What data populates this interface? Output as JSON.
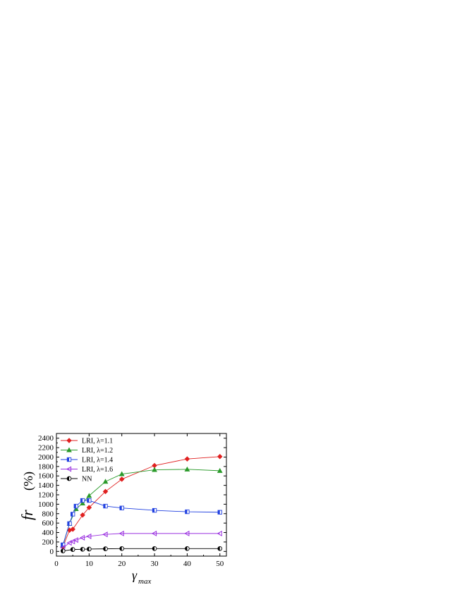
{
  "chart_data": {
    "type": "line",
    "xlabel": "γ",
    "xlabel_subscript": "max",
    "ylabel": "fr",
    "ylabel_unit": "(%)",
    "xlim": [
      0,
      52
    ],
    "ylim": [
      -100,
      2500
    ],
    "xticks": [
      0,
      10,
      20,
      30,
      40,
      50
    ],
    "yticks": [
      0,
      200,
      400,
      600,
      800,
      1000,
      1200,
      1400,
      1600,
      1800,
      2000,
      2200,
      2400
    ],
    "legend_position": "top-left",
    "series": [
      {
        "name": "LRI, λ=1.1",
        "color": "#e02020",
        "marker": "diamond",
        "x": [
          2,
          4,
          5,
          8,
          10,
          15,
          20,
          30,
          40,
          50
        ],
        "y": [
          100,
          450,
          470,
          770,
          930,
          1270,
          1530,
          1820,
          1960,
          2010
        ]
      },
      {
        "name": "LRI, λ=1.2",
        "color": "#2a9a2a",
        "marker": "triangle-up",
        "x": [
          2,
          4,
          6,
          8,
          10,
          15,
          20,
          30,
          40,
          50
        ],
        "y": [
          130,
          590,
          900,
          1020,
          1180,
          1480,
          1640,
          1730,
          1740,
          1710
        ]
      },
      {
        "name": "LRI, λ=1.4",
        "color": "#2040e0",
        "marker": "square-half",
        "x": [
          2,
          4,
          5,
          6,
          8,
          10,
          15,
          20,
          30,
          40,
          50
        ],
        "y": [
          140,
          590,
          790,
          960,
          1080,
          1080,
          960,
          920,
          870,
          840,
          830
        ]
      },
      {
        "name": "LRI, λ=1.6",
        "color": "#9a30e0",
        "marker": "triangle-left",
        "x": [
          2,
          4,
          5,
          6,
          8,
          10,
          15,
          20,
          30,
          40,
          50
        ],
        "y": [
          80,
          180,
          210,
          240,
          290,
          320,
          360,
          380,
          380,
          380,
          380
        ]
      },
      {
        "name": "NN",
        "color": "#000000",
        "marker": "circle-half",
        "x": [
          2,
          5,
          8,
          10,
          15,
          20,
          30,
          40,
          50
        ],
        "y": [
          10,
          40,
          45,
          50,
          55,
          60,
          60,
          60,
          60
        ]
      }
    ]
  }
}
